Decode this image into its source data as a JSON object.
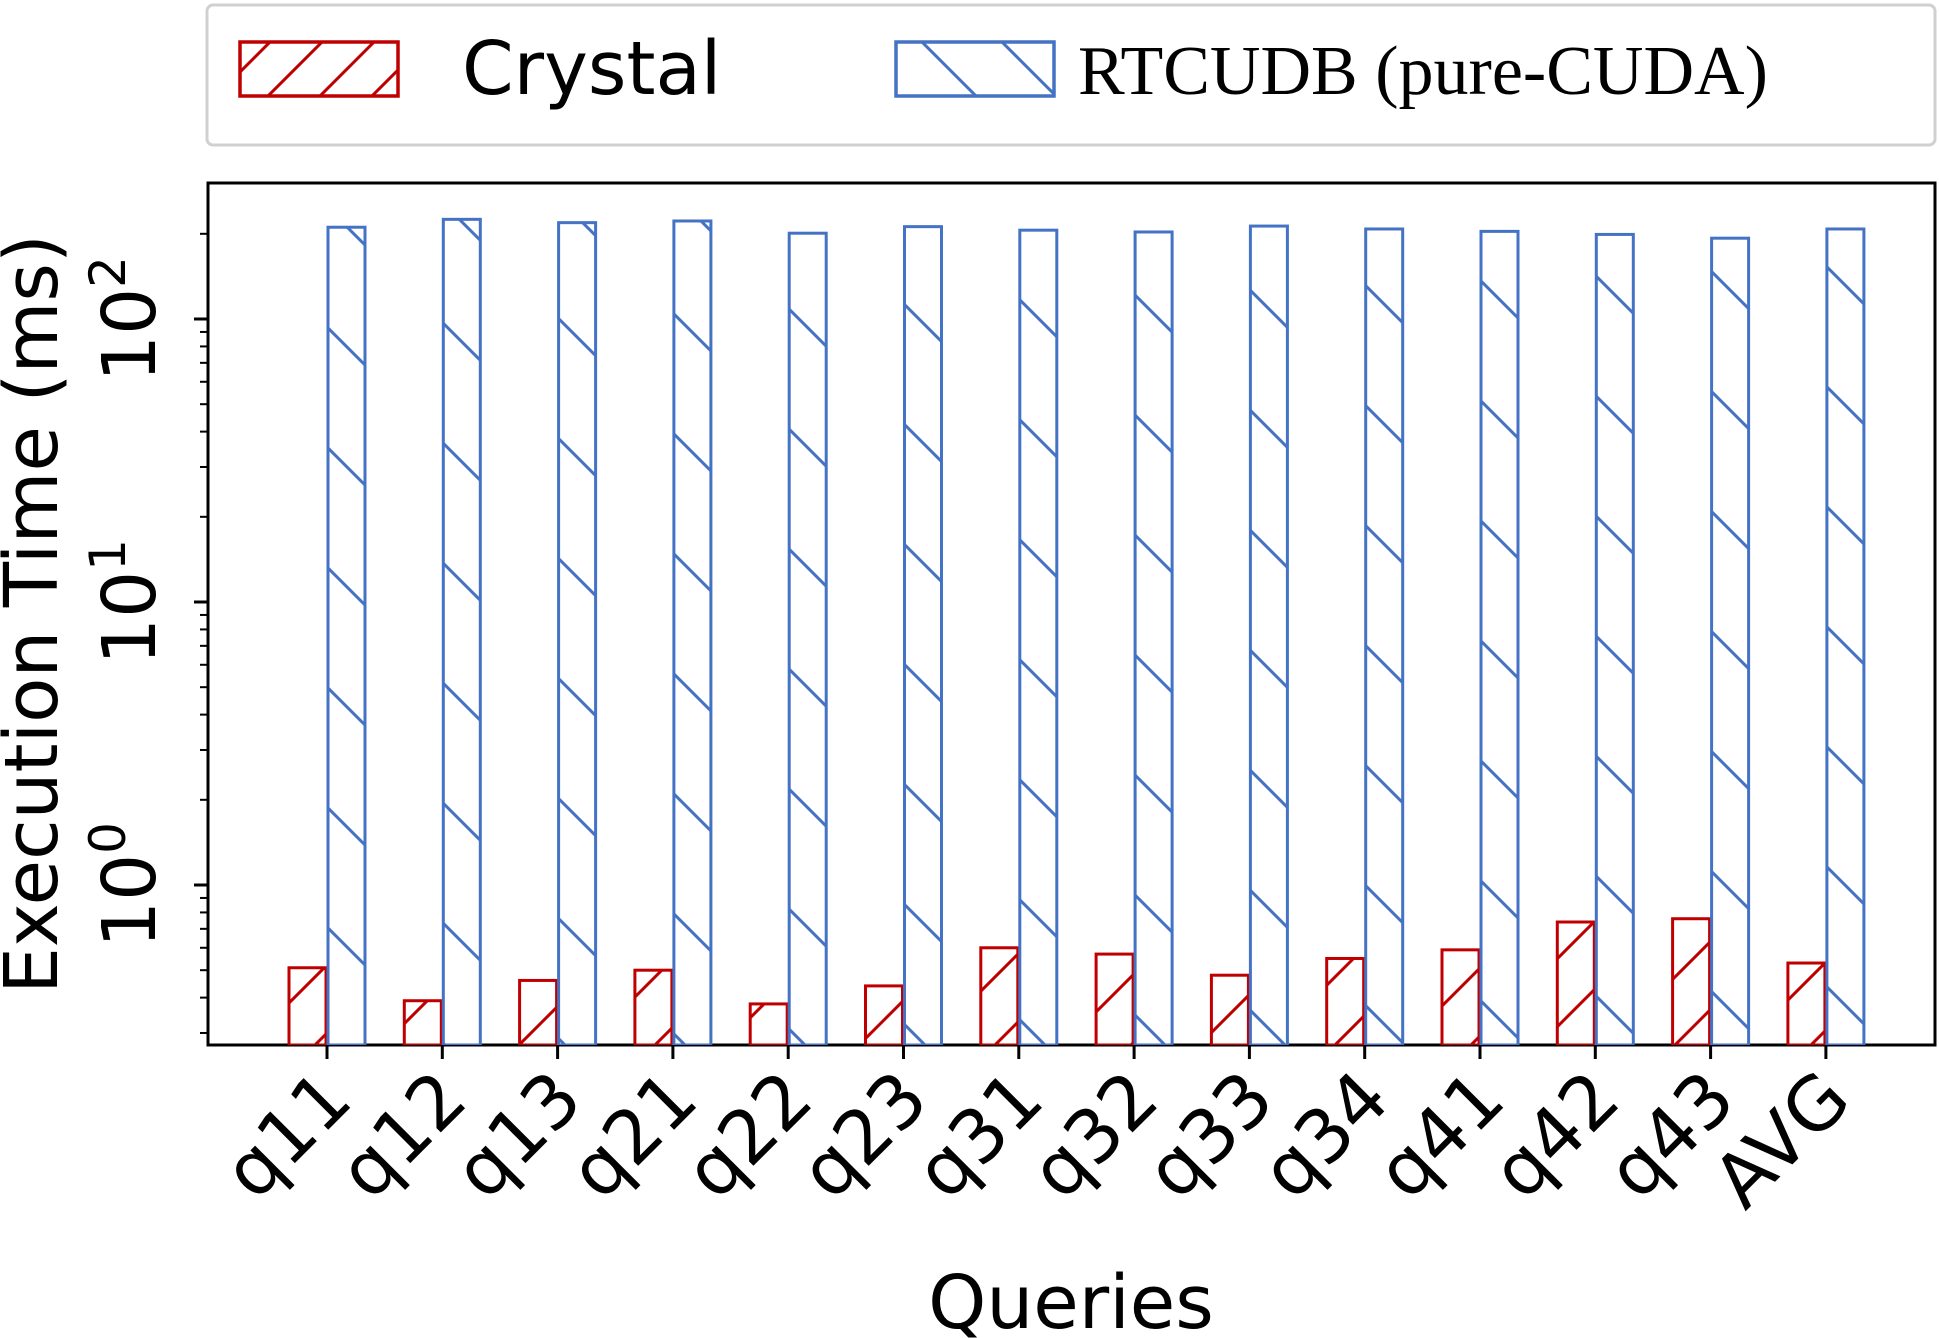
{
  "chart_data": {
    "type": "bar",
    "title": "",
    "xlabel": "Queries",
    "ylabel": "Execution Time (ms)",
    "yscale": "log",
    "ylim": [
      0.3,
      280
    ],
    "grid": false,
    "legend_position": "top",
    "categories": [
      "q11",
      "q12",
      "q13",
      "q21",
      "q22",
      "q23",
      "q31",
      "q32",
      "q33",
      "q34",
      "q41",
      "q42",
      "q43",
      "AVG"
    ],
    "series": [
      {
        "name": "Crystal",
        "color": "#c00000",
        "hatch": "forward-diagonal",
        "values": [
          0.51,
          0.39,
          0.46,
          0.5,
          0.38,
          0.44,
          0.6,
          0.57,
          0.48,
          0.55,
          0.59,
          0.74,
          0.76,
          0.53
        ]
      },
      {
        "name": "RTCUDB (pure-CUDA)",
        "color": "#4472c4",
        "hatch": "back-diagonal",
        "values": [
          211,
          225,
          219,
          222,
          201,
          212,
          206,
          203,
          213,
          208,
          204,
          199,
          193,
          208
        ]
      }
    ],
    "yticks": [
      {
        "value": 1,
        "base": "10",
        "exp": "0"
      },
      {
        "value": 10,
        "base": "10",
        "exp": "1"
      },
      {
        "value": 100,
        "base": "10",
        "exp": "2"
      }
    ]
  }
}
